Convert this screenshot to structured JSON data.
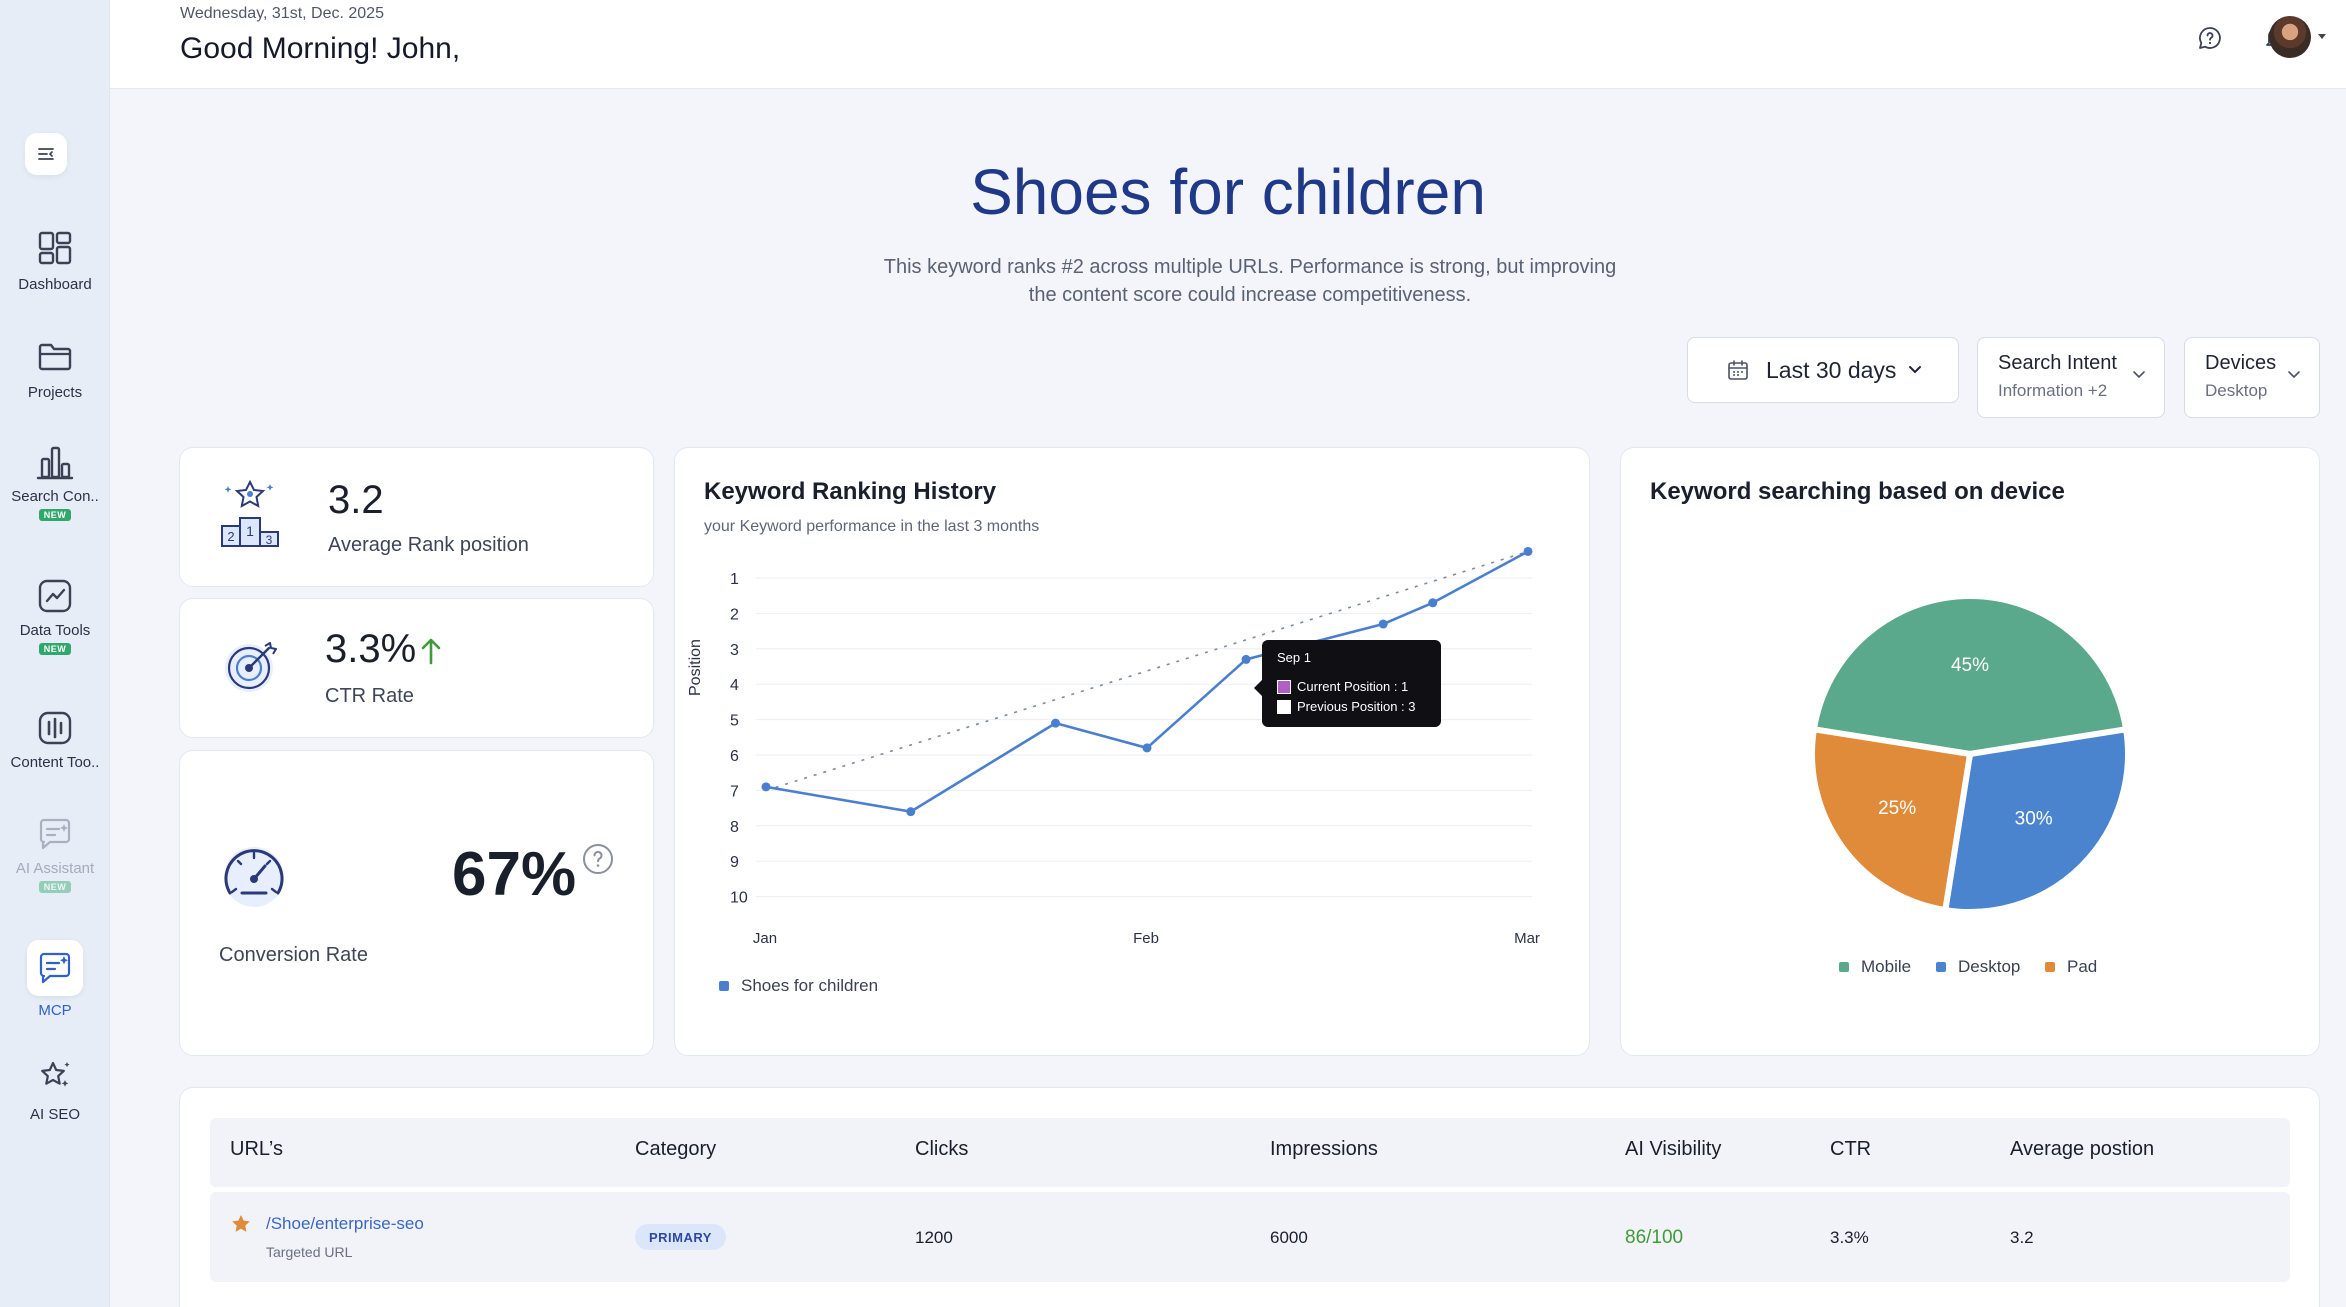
{
  "header": {
    "date": "Wednesday, 31st, Dec. 2025",
    "greeting": "Good Morning! John,"
  },
  "sidebar": {
    "items": [
      {
        "label": "Dashboard",
        "icon": "dashboard-icon"
      },
      {
        "label": "Projects",
        "icon": "folder-icon"
      },
      {
        "label": "Search Con..",
        "icon": "bar-chart-icon",
        "badge": "NEW"
      },
      {
        "label": "Data Tools",
        "icon": "trend-chart-icon",
        "badge": "NEW"
      },
      {
        "label": "Content Too..",
        "icon": "content-tool-icon"
      },
      {
        "label": "AI Assistant",
        "icon": "ai-chat-icon",
        "badge": "NEW"
      },
      {
        "label": "MCP",
        "icon": "mcp-chat-icon"
      },
      {
        "label": "AI SEO",
        "icon": "sparkle-star-icon"
      }
    ]
  },
  "hero": {
    "title": "Shoes for children",
    "description_line1": "This keyword ranks #2 across multiple URLs. Performance is strong, but improving",
    "description_line2": "the content score could increase competitiveness."
  },
  "filters": {
    "date_range": "Last 30 days",
    "intent_title": "Search Intent",
    "intent_value": "Information +2",
    "devices_title": "Devices",
    "devices_value": "Desktop"
  },
  "stats": {
    "rank_value": "3.2",
    "rank_label": "Average Rank position",
    "ctr_value": "3.3%",
    "ctr_label": "CTR Rate",
    "conversion_value": "67%",
    "conversion_label": "Conversion Rate"
  },
  "ranking_chart": {
    "title": "Keyword Ranking History",
    "subtitle": "your Keyword performance in the last 3 months",
    "ylabel": "Position",
    "legend": "Shoes for children",
    "tooltip": {
      "title": "Sep 1",
      "current": "Current Position : 1",
      "previous": "Previous Position  : 3"
    }
  },
  "device_chart": {
    "title": "Keyword searching based on device",
    "legend": [
      "Mobile",
      "Desktop",
      "Pad"
    ]
  },
  "colors": {
    "primary": "#1f3888",
    "line": "#4a7fd0",
    "mobile": "#5aa98c",
    "desktop": "#4a84cf",
    "pad": "#e08b3a",
    "ai_visibility": "#3e9b3a"
  },
  "chart_data": [
    {
      "type": "line",
      "title": "Keyword Ranking History",
      "xlabel": "",
      "ylabel": "Position",
      "x_ticks": [
        "Jan",
        "Feb",
        "Mar"
      ],
      "y_ticks": [
        1,
        2,
        3,
        4,
        5,
        6,
        7,
        8,
        9,
        10
      ],
      "ylim": [
        10,
        1
      ],
      "series": [
        {
          "name": "Shoes for children",
          "x": [
            0,
            0.38,
            0.76,
            1.0,
            1.26,
            1.62,
            1.75,
            2.0
          ],
          "values": [
            6.9,
            7.6,
            5.1,
            5.8,
            3.3,
            2.3,
            1.7,
            0.25
          ]
        }
      ],
      "trend": {
        "x": [
          0,
          2.0
        ],
        "values": [
          7.0,
          0.25
        ]
      }
    },
    {
      "type": "pie",
      "title": "Keyword searching based on device",
      "categories": [
        "Mobile",
        "Desktop",
        "Pad"
      ],
      "values": [
        45,
        30,
        25
      ],
      "labels": [
        "45%",
        "30%",
        "25%"
      ]
    }
  ],
  "table": {
    "columns": [
      "URL’s",
      "Category",
      "Clicks",
      "Impressions",
      "AI Visibility",
      "CTR",
      "Average postion"
    ],
    "rows": [
      {
        "url": "/Shoe/enterprise-seo",
        "url_sub": "Targeted URL",
        "category": "PRIMARY",
        "clicks": "1200",
        "impressions": "6000",
        "ai_visibility": "86/100",
        "ctr": "3.3%",
        "avg_position": "3.2"
      }
    ]
  }
}
